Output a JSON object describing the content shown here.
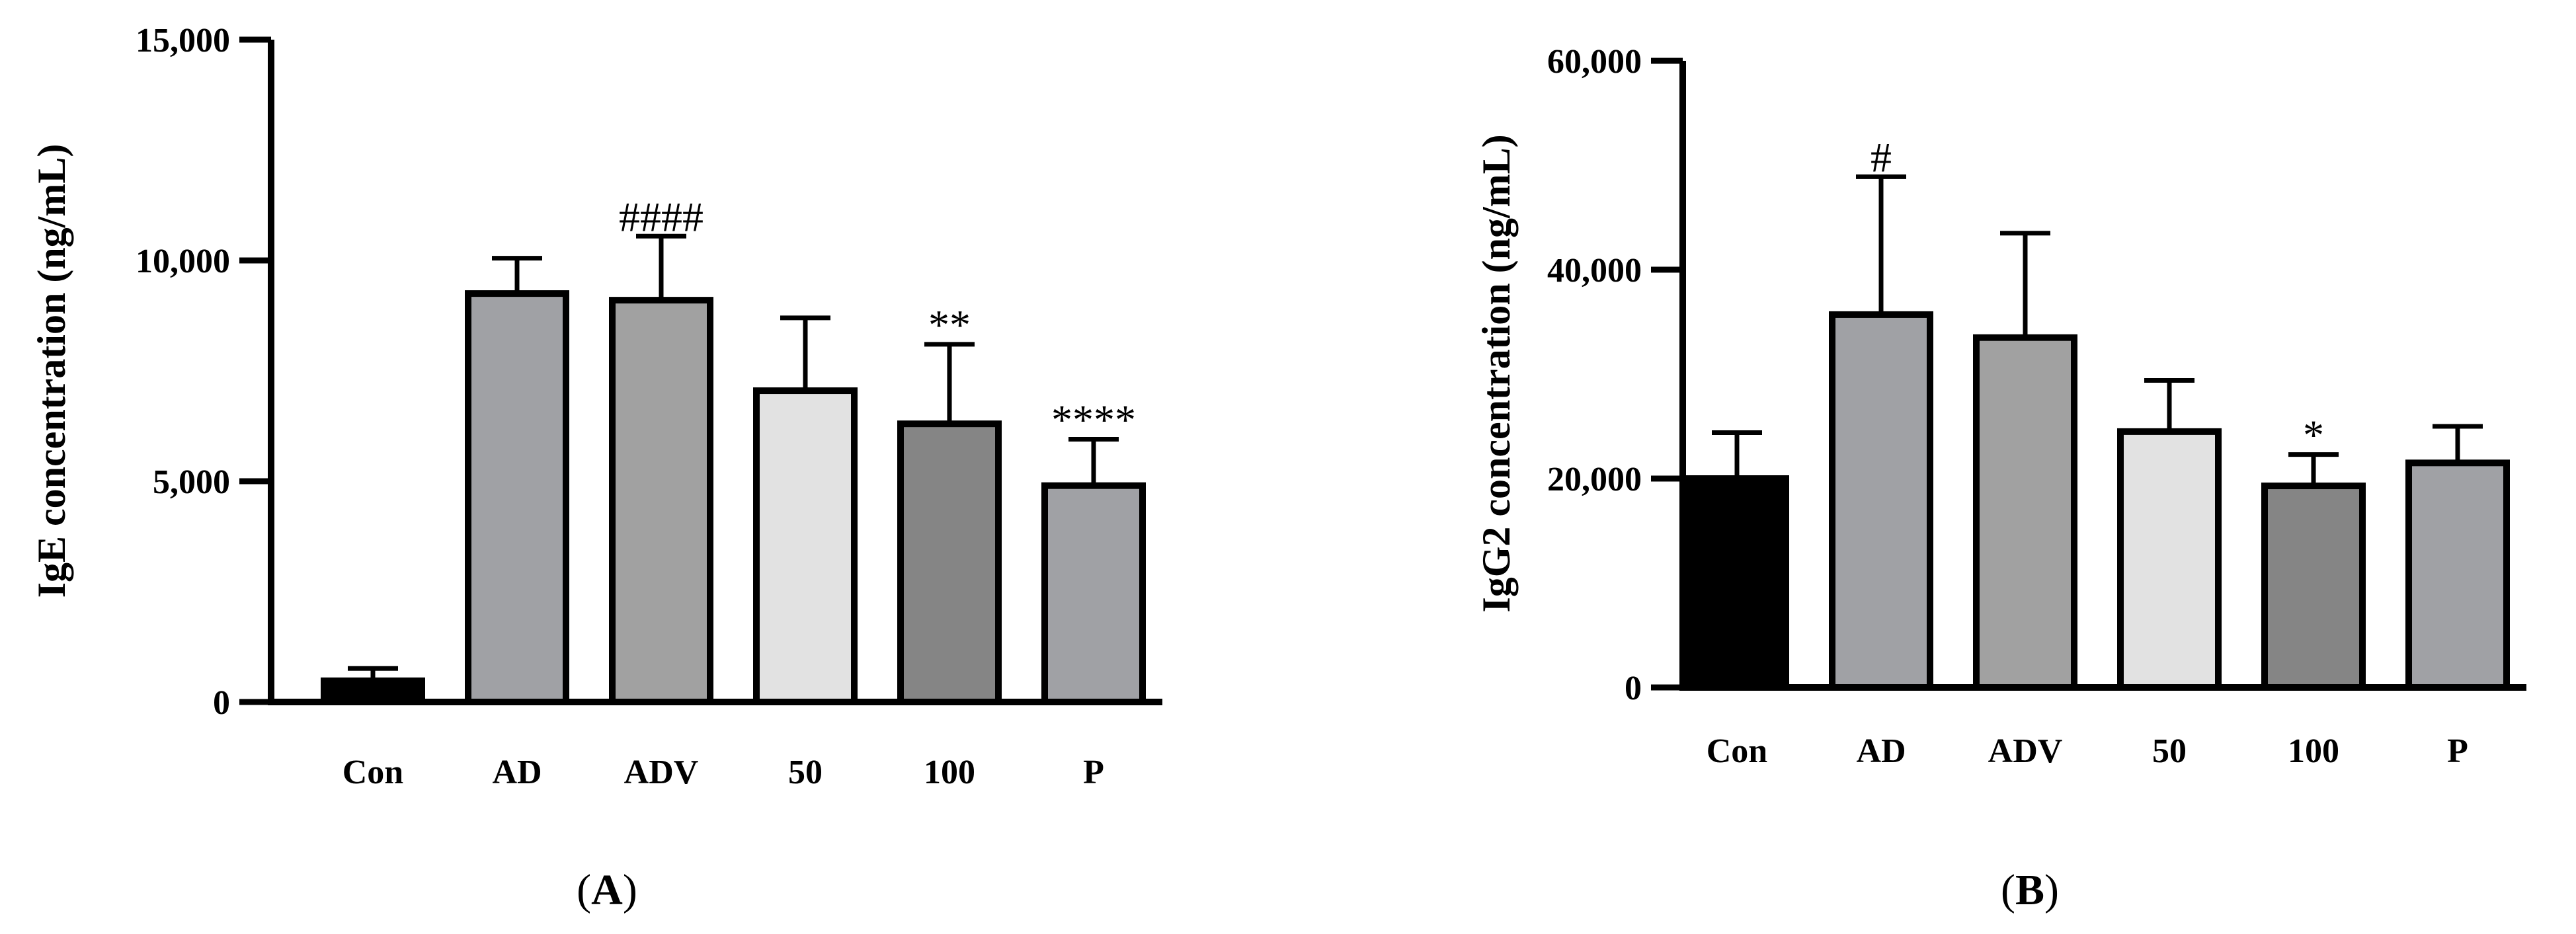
{
  "chart_data": [
    {
      "type": "bar",
      "panel_label": "A",
      "ylabel": "IgE concentration (ng/mL)",
      "ylim": [
        0,
        15000
      ],
      "yticks": [
        0,
        5000,
        10000,
        15000
      ],
      "ytick_labels": [
        "0",
        "5,000",
        "10,000",
        "15,000"
      ],
      "categories": [
        "Con",
        "AD",
        "ADV",
        "50",
        "100",
        "P"
      ],
      "values": [
        480,
        9250,
        9100,
        7050,
        6300,
        4900
      ],
      "errors": [
        280,
        800,
        1450,
        1650,
        1800,
        1050
      ],
      "bar_colors": [
        "#000000",
        "#a0a1a5",
        "#a1a1a1",
        "#e2e2e2",
        "#858585",
        "#a0a1a5"
      ],
      "significance": [
        "",
        "",
        "####",
        "",
        "**",
        "****"
      ]
    },
    {
      "type": "bar",
      "panel_label": "B",
      "ylabel": "IgG2 concentration (ng/mL)",
      "ylim": [
        0,
        60000
      ],
      "yticks": [
        0,
        20000,
        40000,
        60000
      ],
      "ytick_labels": [
        "0",
        "20,000",
        "40,000",
        "60,000"
      ],
      "categories": [
        "Con",
        "AD",
        "ADV",
        "50",
        "100",
        "P"
      ],
      "values": [
        20000,
        35700,
        33500,
        24500,
        19300,
        21500
      ],
      "errors": [
        4400,
        13200,
        10000,
        4900,
        3000,
        3500
      ],
      "bar_colors": [
        "#000000",
        "#a0a1a5",
        "#a1a1a1",
        "#e2e2e2",
        "#858585",
        "#a0a1a5"
      ],
      "significance": [
        "",
        "#",
        "",
        "",
        "*",
        ""
      ]
    }
  ]
}
